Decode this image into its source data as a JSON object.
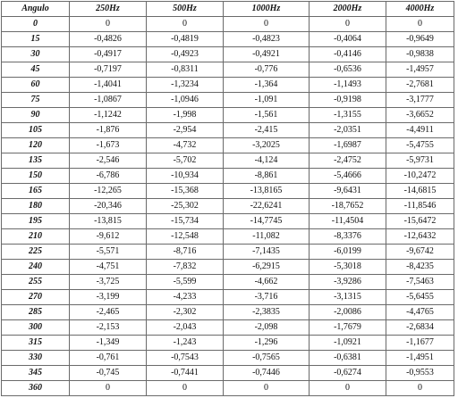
{
  "table": {
    "headers": [
      "Angulo",
      "250Hz",
      "500Hz",
      "1000Hz",
      "2000Hz",
      "4000Hz"
    ],
    "rows": [
      [
        "0",
        "0",
        "0",
        "0",
        "0",
        "0"
      ],
      [
        "15",
        "-0,4826",
        "-0,4819",
        "-0,4823",
        "-0,4064",
        "-0,9649"
      ],
      [
        "30",
        "-0,4917",
        "-0,4923",
        "-0,4921",
        "-0,4146",
        "-0,9838"
      ],
      [
        "45",
        "-0,7197",
        "-0,8311",
        "-0,776",
        "-0,6536",
        "-1,4957"
      ],
      [
        "60",
        "-1,4041",
        "-1,3234",
        "-1,364",
        "-1,1493",
        "-2,7681"
      ],
      [
        "75",
        "-1,0867",
        "-1,0946",
        "-1,091",
        "-0,9198",
        "-3,1777"
      ],
      [
        "90",
        "-1,1242",
        "-1,998",
        "-1,561",
        "-1,3155",
        "-3,6652"
      ],
      [
        "105",
        "-1,876",
        "-2,954",
        "-2,415",
        "-2,0351",
        "-4,4911"
      ],
      [
        "120",
        "-1,673",
        "-4,732",
        "-3,2025",
        "-1,6987",
        "-5,4755"
      ],
      [
        "135",
        "-2,546",
        "-5,702",
        "-4,124",
        "-2,4752",
        "-5,9731"
      ],
      [
        "150",
        "-6,786",
        "-10,934",
        "-8,861",
        "-5,4666",
        "-10,2472"
      ],
      [
        "165",
        "-12,265",
        "-15,368",
        "-13,8165",
        "-9,6431",
        "-14,6815"
      ],
      [
        "180",
        "-20,346",
        "-25,302",
        "-22,6241",
        "-18,7652",
        "-11,8546"
      ],
      [
        "195",
        "-13,815",
        "-15,734",
        "-14,7745",
        "-11,4504",
        "-15,6472"
      ],
      [
        "210",
        "-9,612",
        "-12,548",
        "-11,082",
        "-8,3376",
        "-12,6432"
      ],
      [
        "225",
        "-5,571",
        "-8,716",
        "-7,1435",
        "-6,0199",
        "-9,6742"
      ],
      [
        "240",
        "-4,751",
        "-7,832",
        "-6,2915",
        "-5,3018",
        "-8,4235"
      ],
      [
        "255",
        "-3,725",
        "-5,599",
        "-4,662",
        "-3,9286",
        "-7,5463"
      ],
      [
        "270",
        "-3,199",
        "-4,233",
        "-3,716",
        "-3,1315",
        "-5,6455"
      ],
      [
        "285",
        "-2,465",
        "-2,302",
        "-2,3835",
        "-2,0086",
        "-4,4765"
      ],
      [
        "300",
        "-2,153",
        "-2,043",
        "-2,098",
        "-1,7679",
        "-2,6834"
      ],
      [
        "315",
        "-1,349",
        "-1,243",
        "-1,296",
        "-1,0921",
        "-1,1677"
      ],
      [
        "330",
        "-0,761",
        "-0,7543",
        "-0,7565",
        "-0,6381",
        "-1,4951"
      ],
      [
        "345",
        "-0,745",
        "-0,7441",
        "-0,7446",
        "-0,6274",
        "-0,9553"
      ],
      [
        "360",
        "0",
        "0",
        "0",
        "0",
        "0"
      ]
    ]
  }
}
